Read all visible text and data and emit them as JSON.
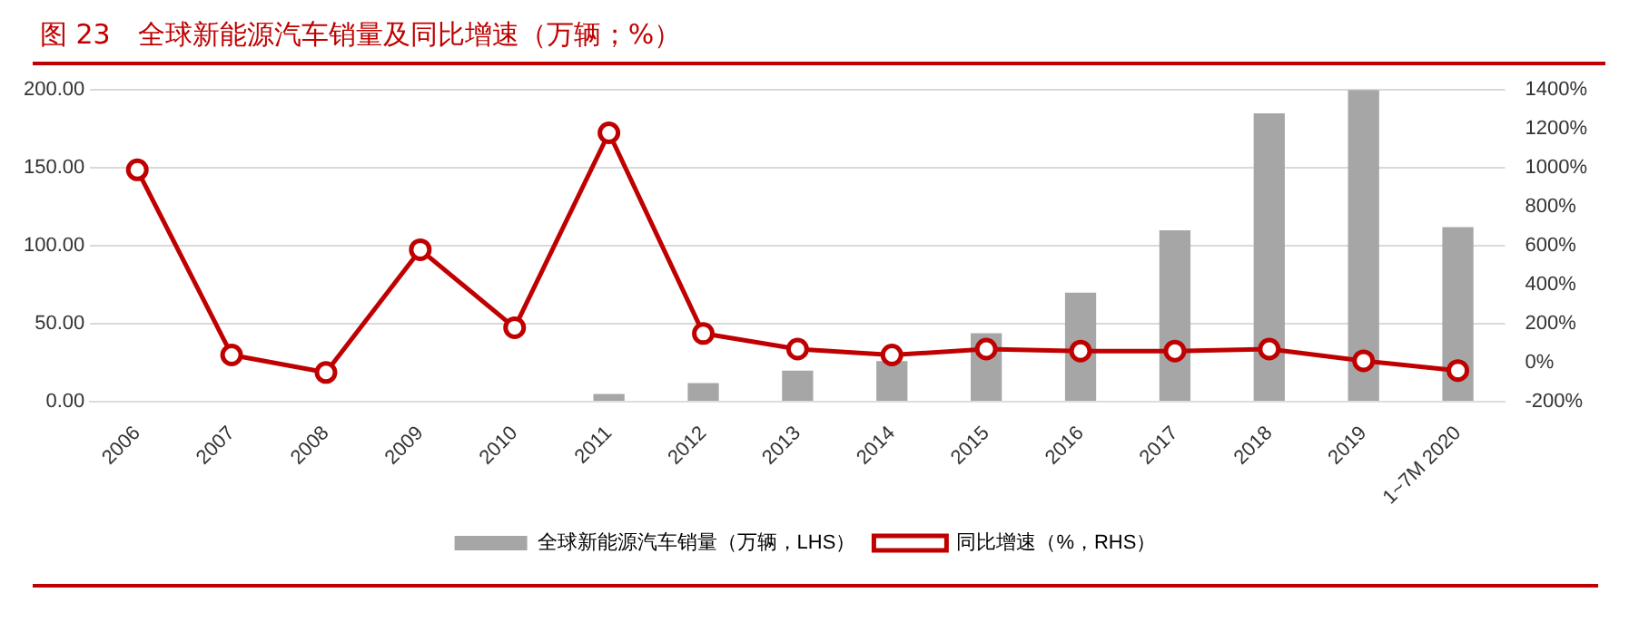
{
  "chart_data": {
    "type": "bar",
    "title": "图 23　全球新能源汽车销量及同比增速（万辆；%）",
    "categories": [
      "2006",
      "2007",
      "2008",
      "2009",
      "2010",
      "2011",
      "2012",
      "2013",
      "2014",
      "2015",
      "2016",
      "2017",
      "2018",
      "2019",
      "1~7M 2020"
    ],
    "series": [
      {
        "name": "全球新能源汽车销量（万辆，LHS）",
        "color": "#a6a6a6",
        "values": [
          0,
          0,
          0,
          0,
          0,
          5,
          12,
          20,
          26,
          44,
          70,
          110,
          185,
          200,
          112
        ]
      },
      {
        "name": "同比增速（%，RHS）",
        "type": "line",
        "axis": "y2",
        "color": "#c00000",
        "marker": "circle",
        "values": [
          990,
          40,
          -50,
          580,
          180,
          1180,
          150,
          70,
          40,
          70,
          60,
          60,
          70,
          10,
          -40
        ]
      }
    ],
    "ylim": [
      0,
      200
    ],
    "yticks": [
      {
        "value": 0,
        "label": "0.00"
      },
      {
        "value": 50,
        "label": "50.00"
      },
      {
        "value": 100,
        "label": "100.00"
      },
      {
        "value": 150,
        "label": "150.00"
      },
      {
        "value": 200,
        "label": "200.00"
      }
    ],
    "y2lim": [
      -200,
      1400
    ],
    "y2ticks": [
      {
        "value": -200,
        "label": "-200%"
      },
      {
        "value": 0,
        "label": "0%"
      },
      {
        "value": 200,
        "label": "200%"
      },
      {
        "value": 400,
        "label": "400%"
      },
      {
        "value": 600,
        "label": "600%"
      },
      {
        "value": 800,
        "label": "800%"
      },
      {
        "value": 1000,
        "label": "1000%"
      },
      {
        "value": 1200,
        "label": "1200%"
      },
      {
        "value": 1400,
        "label": "1400%"
      }
    ],
    "grid": "y",
    "legend": "bottom"
  }
}
